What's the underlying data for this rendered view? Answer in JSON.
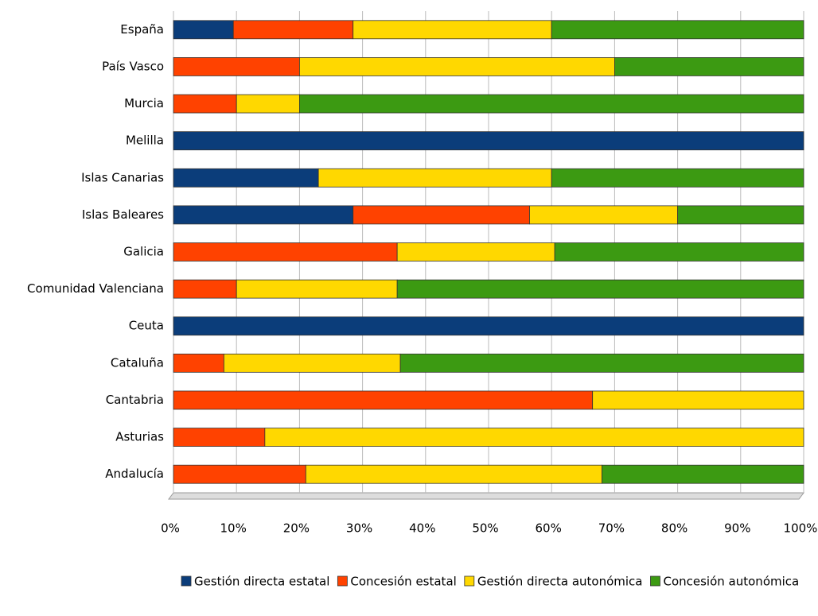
{
  "chart_data": {
    "type": "bar_stacked_horizontal",
    "categories": [
      "España",
      "País Vasco",
      "Murcia",
      "Melilla",
      "Islas Canarias",
      "Islas Baleares",
      "Galicia",
      "Comunidad Valenciana",
      "Ceuta",
      "Cataluña",
      "Cantabria",
      "Asturias",
      "Andalucía"
    ],
    "series": [
      {
        "name": "Gestión directa estatal",
        "color": "#0b3d7a",
        "values": [
          9.5,
          0,
          0,
          100,
          23,
          28.5,
          0,
          0,
          100,
          0,
          0,
          0,
          0
        ]
      },
      {
        "name": "Concesión estatal",
        "color": "#ff4200",
        "values": [
          19,
          20,
          10,
          0,
          0,
          28,
          35.5,
          10,
          0,
          8,
          66.5,
          14.5,
          21
        ]
      },
      {
        "name": "Gestión directa autonómica",
        "color": "#ffd800",
        "values": [
          31.5,
          50,
          10,
          0,
          37,
          23.5,
          25,
          25.5,
          0,
          28,
          33.5,
          85.5,
          47
        ]
      },
      {
        "name": "Concesión autonómica",
        "color": "#3c9a12",
        "values": [
          40,
          30,
          80,
          0,
          40,
          20,
          39.5,
          64.5,
          0,
          64,
          0,
          0,
          32
        ]
      }
    ],
    "xlim": [
      0,
      100
    ],
    "xticks": [
      {
        "value": 0,
        "label": "0%"
      },
      {
        "value": 10,
        "label": "10%"
      },
      {
        "value": 20,
        "label": "20%"
      },
      {
        "value": 30,
        "label": "30%"
      },
      {
        "value": 40,
        "label": "40%"
      },
      {
        "value": 50,
        "label": "50%"
      },
      {
        "value": 60,
        "label": "60%"
      },
      {
        "value": 70,
        "label": "70%"
      },
      {
        "value": 80,
        "label": "80%"
      },
      {
        "value": 90,
        "label": "90%"
      },
      {
        "value": 100,
        "label": "100%"
      }
    ],
    "grid": true,
    "legend": "bottom"
  }
}
